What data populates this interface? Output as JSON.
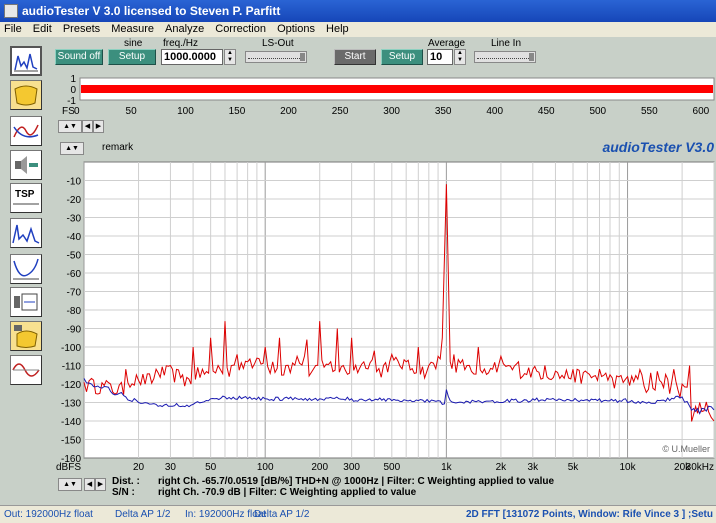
{
  "window": {
    "title": "audioTester  V 3.0    licensed to Steven P. Parfitt"
  },
  "menu": [
    "File",
    "Edit",
    "Presets",
    "Measure",
    "Analyze",
    "Correction",
    "Options",
    "Help"
  ],
  "controls": {
    "sine_label": "sine",
    "freq_label": "freq./Hz",
    "ls_out_label": "LS-Out",
    "average_label": "Average",
    "line_in_label": "Line In",
    "sound_off": "Sound off",
    "setup1": "Setup",
    "freq_value": "1000.0000",
    "start": "Start",
    "setup2": "Setup",
    "average_value": "10"
  },
  "scope": {
    "y_ticks": [
      "1",
      "0",
      "-1"
    ],
    "fs_label": "FS",
    "x_ticks": [
      "0",
      "50",
      "100",
      "150",
      "200",
      "250",
      "300",
      "350",
      "400",
      "450",
      "500",
      "550",
      "600"
    ],
    "color": "#ff0000"
  },
  "fft": {
    "remark_label": "remark",
    "brand": "audioTester V3.0",
    "copyright": "© U.Mueller",
    "y_unit": "dBFS",
    "info": {
      "dist_label": "Dist. :",
      "sn_label": "S/N :",
      "dist_text": "right Ch. -65.7/0.0519 [dB/%] THD+N @ 1000Hz  | Filter: C Weighting applied to value",
      "sn_text": "right Ch. -70.9 dB  | Filter: C Weighting applied to value"
    }
  },
  "chart_data": {
    "type": "line",
    "title": "",
    "xlabel": "",
    "ylabel": "dBFS",
    "x_scale": "log",
    "xlim": [
      10,
      30000
    ],
    "ylim": [
      -160,
      0
    ],
    "y_ticks": [
      -10,
      -20,
      -30,
      -40,
      -50,
      -60,
      -70,
      -80,
      -90,
      -100,
      -110,
      -120,
      -130,
      -140,
      -150,
      -160
    ],
    "x_tick_labels": [
      {
        "value": 20,
        "label": "20"
      },
      {
        "value": 30,
        "label": "30"
      },
      {
        "value": 50,
        "label": "50"
      },
      {
        "value": 100,
        "label": "100"
      },
      {
        "value": 200,
        "label": "200"
      },
      {
        "value": 300,
        "label": "300"
      },
      {
        "value": 500,
        "label": "500"
      },
      {
        "value": 1000,
        "label": "1k"
      },
      {
        "value": 2000,
        "label": "2k"
      },
      {
        "value": 3000,
        "label": "3k"
      },
      {
        "value": 5000,
        "label": "5k"
      },
      {
        "value": 10000,
        "label": "10k"
      },
      {
        "value": 20000,
        "label": "20k"
      },
      {
        "value": 30000,
        "label": "30kHz"
      }
    ],
    "grid": true,
    "series": [
      {
        "color": "#dd0000",
        "x": [
          10,
          11,
          14,
          17,
          20,
          25,
          30,
          35,
          40,
          45,
          50,
          55,
          60,
          65,
          70,
          80,
          90,
          100,
          110,
          120,
          130,
          150,
          170,
          190,
          200,
          230,
          250,
          270,
          300,
          350,
          400,
          450,
          500,
          600,
          700,
          800,
          900,
          950,
          1000,
          1050,
          1100,
          1300,
          1500,
          1800,
          2000,
          2200,
          2500,
          3000,
          3500,
          4000,
          5000,
          6000,
          7000,
          8000,
          10000,
          12000,
          15000,
          18000,
          20000,
          22000,
          25000,
          28000,
          30000
        ],
        "y": [
          -119,
          -117,
          -120,
          -112,
          -118,
          -112,
          -110,
          -115,
          -100,
          -112,
          -95,
          -110,
          -86,
          -110,
          -104,
          -108,
          -106,
          -100,
          -108,
          -95,
          -110,
          -105,
          -96,
          -110,
          -86,
          -108,
          -90,
          -110,
          -95,
          -108,
          -102,
          -110,
          -104,
          -108,
          -100,
          -110,
          -105,
          -95,
          -12,
          -108,
          -104,
          -110,
          -100,
          -112,
          -105,
          -110,
          -108,
          -112,
          -110,
          -113,
          -112,
          -114,
          -112,
          -115,
          -116,
          -115,
          -118,
          -112,
          -120,
          -110,
          -130,
          -135,
          -140
        ]
      },
      {
        "color": "#1a1ab0",
        "x": [
          10,
          11,
          14,
          17,
          20,
          25,
          30,
          40,
          50,
          60,
          80,
          100,
          150,
          200,
          300,
          500,
          700,
          900,
          950,
          1000,
          1050,
          1100,
          1500,
          2000,
          3000,
          5000,
          7000,
          10000,
          15000,
          18000,
          20000,
          22000,
          25000,
          28000,
          30000
        ],
        "y": [
          -117,
          -120,
          -124,
          -127,
          -130,
          -131,
          -132,
          -131,
          -128,
          -127,
          -128,
          -128,
          -128,
          -128,
          -128,
          -129,
          -129,
          -129,
          -131,
          -123,
          -129,
          -130,
          -129,
          -130,
          -128,
          -129,
          -128,
          -130,
          -129,
          -128,
          -127,
          -132,
          -136,
          -132,
          -134
        ]
      }
    ]
  },
  "status": {
    "out": "Out: 192000Hz float",
    "delta1": "Delta AP 1/2",
    "in": "In: 192000Hz float",
    "delta2": "Delta AP 1/2",
    "fft_info": "2D FFT [131072 Points, Window: Rife Vince 3 ] ;Setu"
  }
}
